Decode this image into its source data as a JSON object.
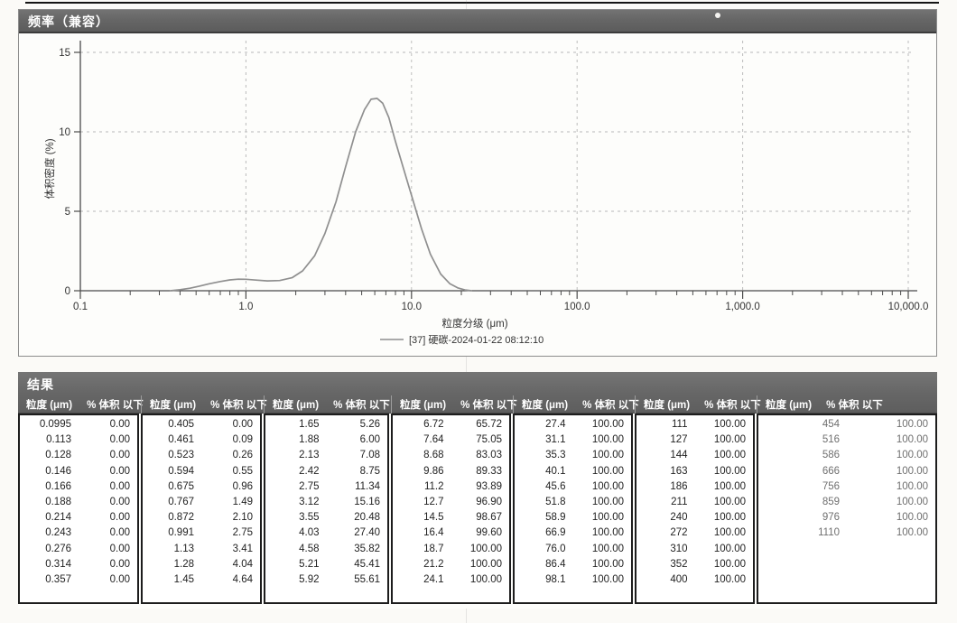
{
  "chart": {
    "panel_title": "频率（兼容）"
  },
  "chart_data": {
    "type": "line",
    "title": "频率（兼容）",
    "xlabel": "粒度分级 (μm)",
    "ylabel": "体积密度 (%)",
    "x_scale": "log",
    "xlim": [
      0.1,
      10000
    ],
    "ylim": [
      0,
      15
    ],
    "x_ticks": [
      "0.1",
      "1.0",
      "10.0",
      "100.0",
      "1,000.0",
      "10,000.0"
    ],
    "y_ticks": [
      0,
      5,
      10,
      15
    ],
    "grid": true,
    "legend_position": "bottom-center",
    "series": [
      {
        "name": "[37] 硬碳-2024-01-22 08:12:10",
        "color": "#8f8f8f",
        "points": [
          [
            0.35,
            0.0
          ],
          [
            0.4,
            0.06
          ],
          [
            0.46,
            0.16
          ],
          [
            0.52,
            0.28
          ],
          [
            0.6,
            0.44
          ],
          [
            0.7,
            0.58
          ],
          [
            0.8,
            0.68
          ],
          [
            0.9,
            0.73
          ],
          [
            1.0,
            0.72
          ],
          [
            1.15,
            0.67
          ],
          [
            1.35,
            0.62
          ],
          [
            1.6,
            0.64
          ],
          [
            1.9,
            0.82
          ],
          [
            2.2,
            1.25
          ],
          [
            2.6,
            2.2
          ],
          [
            3.0,
            3.6
          ],
          [
            3.5,
            5.6
          ],
          [
            4.0,
            7.8
          ],
          [
            4.6,
            10.0
          ],
          [
            5.2,
            11.4
          ],
          [
            5.7,
            12.05
          ],
          [
            6.2,
            12.1
          ],
          [
            6.7,
            11.8
          ],
          [
            7.3,
            10.9
          ],
          [
            8.0,
            9.4
          ],
          [
            9.0,
            7.6
          ],
          [
            10.0,
            6.0
          ],
          [
            11.5,
            3.9
          ],
          [
            13.0,
            2.3
          ],
          [
            15.0,
            1.05
          ],
          [
            17.0,
            0.45
          ],
          [
            19.0,
            0.18
          ],
          [
            21.0,
            0.05
          ],
          [
            23.0,
            0.0
          ]
        ]
      }
    ]
  },
  "results_table": {
    "title": "结果",
    "col_headers": [
      "粒度 (μm)",
      "% 体积 以下"
    ],
    "groups": [
      {
        "rows": [
          [
            "0.0995",
            "0.00"
          ],
          [
            "0.113",
            "0.00"
          ],
          [
            "0.128",
            "0.00"
          ],
          [
            "0.146",
            "0.00"
          ],
          [
            "0.166",
            "0.00"
          ],
          [
            "0.188",
            "0.00"
          ],
          [
            "0.214",
            "0.00"
          ],
          [
            "0.243",
            "0.00"
          ],
          [
            "0.276",
            "0.00"
          ],
          [
            "0.314",
            "0.00"
          ],
          [
            "0.357",
            "0.00"
          ]
        ]
      },
      {
        "rows": [
          [
            "0.405",
            "0.00"
          ],
          [
            "0.461",
            "0.09"
          ],
          [
            "0.523",
            "0.26"
          ],
          [
            "0.594",
            "0.55"
          ],
          [
            "0.675",
            "0.96"
          ],
          [
            "0.767",
            "1.49"
          ],
          [
            "0.872",
            "2.10"
          ],
          [
            "0.991",
            "2.75"
          ],
          [
            "1.13",
            "3.41"
          ],
          [
            "1.28",
            "4.04"
          ],
          [
            "1.45",
            "4.64"
          ]
        ]
      },
      {
        "rows": [
          [
            "1.65",
            "5.26"
          ],
          [
            "1.88",
            "6.00"
          ],
          [
            "2.13",
            "7.08"
          ],
          [
            "2.42",
            "8.75"
          ],
          [
            "2.75",
            "11.34"
          ],
          [
            "3.12",
            "15.16"
          ],
          [
            "3.55",
            "20.48"
          ],
          [
            "4.03",
            "27.40"
          ],
          [
            "4.58",
            "35.82"
          ],
          [
            "5.21",
            "45.41"
          ],
          [
            "5.92",
            "55.61"
          ]
        ]
      },
      {
        "rows": [
          [
            "6.72",
            "65.72"
          ],
          [
            "7.64",
            "75.05"
          ],
          [
            "8.68",
            "83.03"
          ],
          [
            "9.86",
            "89.33"
          ],
          [
            "11.2",
            "93.89"
          ],
          [
            "12.7",
            "96.90"
          ],
          [
            "14.5",
            "98.67"
          ],
          [
            "16.4",
            "99.60"
          ],
          [
            "18.7",
            "100.00"
          ],
          [
            "21.2",
            "100.00"
          ],
          [
            "24.1",
            "100.00"
          ]
        ]
      },
      {
        "rows": [
          [
            "27.4",
            "100.00"
          ],
          [
            "31.1",
            "100.00"
          ],
          [
            "35.3",
            "100.00"
          ],
          [
            "40.1",
            "100.00"
          ],
          [
            "45.6",
            "100.00"
          ],
          [
            "51.8",
            "100.00"
          ],
          [
            "58.9",
            "100.00"
          ],
          [
            "66.9",
            "100.00"
          ],
          [
            "76.0",
            "100.00"
          ],
          [
            "86.4",
            "100.00"
          ],
          [
            "98.1",
            "100.00"
          ]
        ]
      },
      {
        "rows": [
          [
            "111",
            "100.00"
          ],
          [
            "127",
            "100.00"
          ],
          [
            "144",
            "100.00"
          ],
          [
            "163",
            "100.00"
          ],
          [
            "186",
            "100.00"
          ],
          [
            "211",
            "100.00"
          ],
          [
            "240",
            "100.00"
          ],
          [
            "272",
            "100.00"
          ],
          [
            "310",
            "100.00"
          ],
          [
            "352",
            "100.00"
          ],
          [
            "400",
            "100.00"
          ]
        ]
      },
      {
        "rows": [
          [
            "454",
            "100.00"
          ],
          [
            "516",
            "100.00"
          ],
          [
            "586",
            "100.00"
          ],
          [
            "666",
            "100.00"
          ],
          [
            "756",
            "100.00"
          ],
          [
            "859",
            "100.00"
          ],
          [
            "976",
            "100.00"
          ],
          [
            "1110",
            "100.00"
          ]
        ]
      }
    ]
  }
}
